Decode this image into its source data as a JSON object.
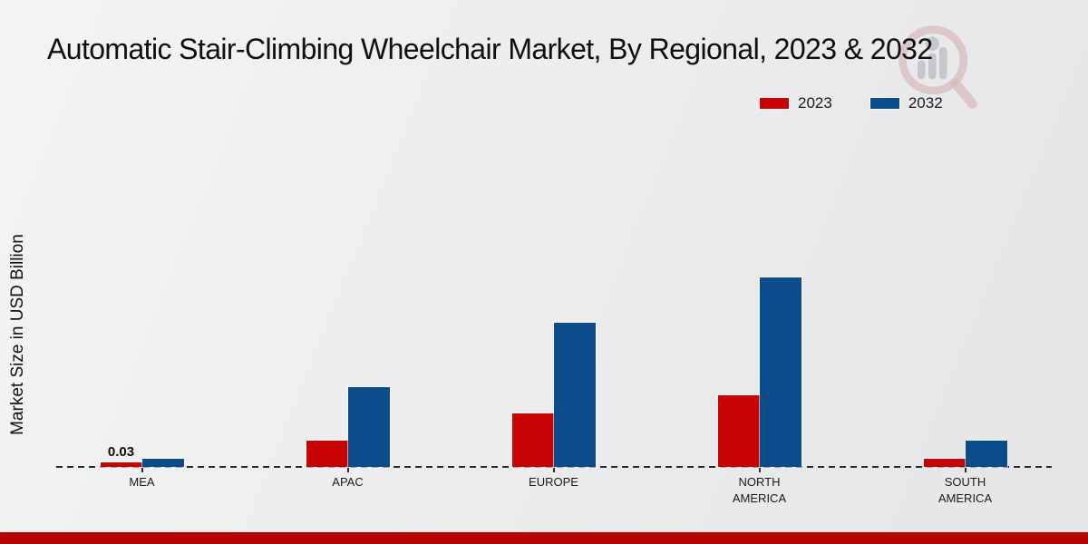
{
  "chart_data": {
    "type": "bar",
    "title": "Automatic Stair-Climbing Wheelchair Market, By Regional, 2023 & 2032",
    "ylabel": "Market Size in USD Billion",
    "xlabel": "",
    "unit": "USD Billion",
    "categories": [
      "MEA",
      "APAC",
      "EUROPE",
      "NORTH AMERICA",
      "SOUTH AMERICA"
    ],
    "series": [
      {
        "name": "2023",
        "color": "#c70303",
        "values": [
          0.03,
          0.16,
          0.32,
          0.43,
          0.05
        ],
        "data_labels": [
          "0.03",
          "",
          "",
          "",
          ""
        ]
      },
      {
        "name": "2032",
        "color": "#0b4d8a",
        "values": [
          0.05,
          0.48,
          0.87,
          1.14,
          0.16
        ],
        "data_labels": [
          "",
          "",
          "",
          "",
          ""
        ]
      }
    ],
    "ylim": [
      0,
      1.25
    ],
    "grid": false,
    "y_axis_visible": false,
    "zero_line_style": "dashed",
    "legend_position": "top-right"
  },
  "branding": {
    "logo_name": "mrfr-magnifier-chart-logo",
    "footer_bar_color": "#b90404",
    "logo_ring_color": "#c98f8f",
    "logo_glyph_color": "#a6a6ab"
  }
}
